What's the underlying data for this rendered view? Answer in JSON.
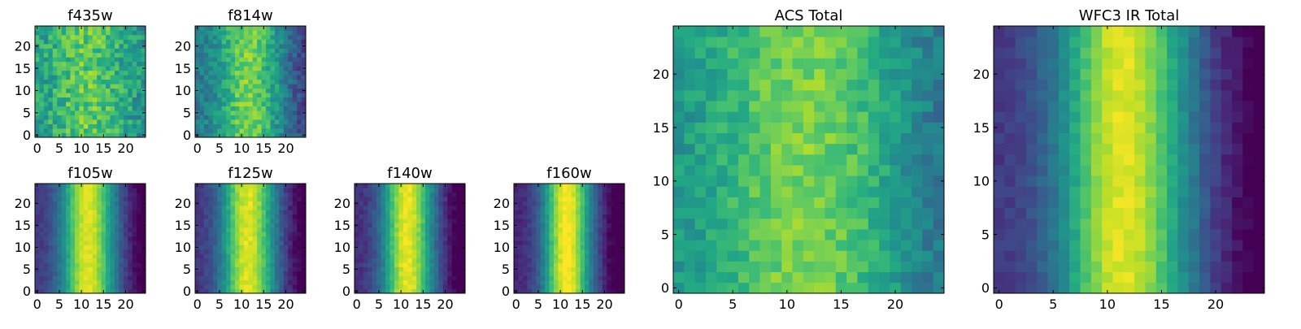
{
  "chart_data": [
    {
      "type": "heatmap",
      "title": "f435w",
      "size": 25,
      "xticks": [
        0,
        5,
        10,
        15,
        20
      ],
      "yticks": [
        0,
        5,
        10,
        15,
        20
      ],
      "xlim": [
        -0.5,
        24.5
      ],
      "ylim": [
        -0.5,
        24.5
      ],
      "colormap": "viridis",
      "profile": {
        "peak_x": 11.5,
        "width": 5.5,
        "base": 0.55,
        "amp": 0.2,
        "noise": 0.3,
        "edge_drop": 0.05,
        "seed": 11
      }
    },
    {
      "type": "heatmap",
      "title": "f814w",
      "size": 25,
      "xticks": [
        0,
        5,
        10,
        15,
        20
      ],
      "yticks": [
        0,
        5,
        10,
        15,
        20
      ],
      "xlim": [
        -0.5,
        24.5
      ],
      "ylim": [
        -0.5,
        24.5
      ],
      "colormap": "viridis",
      "profile": {
        "peak_x": 11.5,
        "width": 4.5,
        "base": 0.4,
        "amp": 0.4,
        "noise": 0.22,
        "edge_drop": 0.2,
        "seed": 23
      }
    },
    {
      "type": "heatmap",
      "title": "f105w",
      "size": 25,
      "xticks": [
        0,
        5,
        10,
        15,
        20
      ],
      "yticks": [
        0,
        5,
        10,
        15,
        20
      ],
      "xlim": [
        -0.5,
        24.5
      ],
      "ylim": [
        -0.5,
        24.5
      ],
      "colormap": "viridis",
      "profile": {
        "peak_x": 11.5,
        "width": 4.2,
        "base": 0.15,
        "amp": 0.8,
        "noise": 0.08,
        "edge_drop": 0.2,
        "seed": 35
      }
    },
    {
      "type": "heatmap",
      "title": "f125w",
      "size": 25,
      "xticks": [
        0,
        5,
        10,
        15,
        20
      ],
      "yticks": [
        0,
        5,
        10,
        15,
        20
      ],
      "xlim": [
        -0.5,
        24.5
      ],
      "ylim": [
        -0.5,
        24.5
      ],
      "colormap": "viridis",
      "profile": {
        "peak_x": 11.5,
        "width": 4.2,
        "base": 0.15,
        "amp": 0.8,
        "noise": 0.1,
        "edge_drop": 0.2,
        "seed": 47
      }
    },
    {
      "type": "heatmap",
      "title": "f140w",
      "size": 25,
      "xticks": [
        0,
        5,
        10,
        15,
        20
      ],
      "yticks": [
        0,
        5,
        10,
        15,
        20
      ],
      "xlim": [
        -0.5,
        24.5
      ],
      "ylim": [
        -0.5,
        24.5
      ],
      "colormap": "viridis",
      "profile": {
        "peak_x": 11.5,
        "width": 4.0,
        "base": 0.12,
        "amp": 0.85,
        "noise": 0.09,
        "edge_drop": 0.2,
        "seed": 59
      }
    },
    {
      "type": "heatmap",
      "title": "f160w",
      "size": 25,
      "xticks": [
        0,
        5,
        10,
        15,
        20
      ],
      "yticks": [
        0,
        5,
        10,
        15,
        20
      ],
      "xlim": [
        -0.5,
        24.5
      ],
      "ylim": [
        -0.5,
        24.5
      ],
      "colormap": "viridis",
      "profile": {
        "peak_x": 11.5,
        "width": 3.8,
        "base": 0.1,
        "amp": 0.9,
        "noise": 0.08,
        "edge_drop": 0.2,
        "seed": 71
      }
    },
    {
      "type": "heatmap",
      "title": "ACS Total",
      "size": 25,
      "xticks": [
        0,
        5,
        10,
        15,
        20
      ],
      "yticks": [
        0,
        5,
        10,
        15,
        20
      ],
      "xlim": [
        -0.5,
        24.5
      ],
      "ylim": [
        -0.5,
        24.5
      ],
      "colormap": "viridis",
      "profile": {
        "peak_x": 11.5,
        "width": 5.5,
        "base": 0.5,
        "amp": 0.3,
        "noise": 0.18,
        "edge_drop": 0.12,
        "seed": 83
      }
    },
    {
      "type": "heatmap",
      "title": "WFC3 IR Total",
      "size": 25,
      "xticks": [
        0,
        5,
        10,
        15,
        20
      ],
      "yticks": [
        0,
        5,
        10,
        15,
        20
      ],
      "xlim": [
        -0.5,
        24.5
      ],
      "ylim": [
        -0.5,
        24.5
      ],
      "colormap": "viridis",
      "profile": {
        "peak_x": 11.5,
        "width": 4.2,
        "base": 0.15,
        "amp": 0.8,
        "noise": 0.08,
        "edge_drop": 0.2,
        "seed": 97
      }
    }
  ]
}
